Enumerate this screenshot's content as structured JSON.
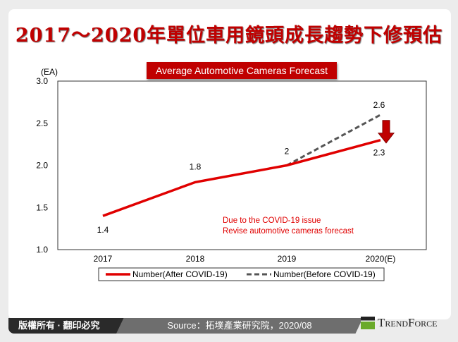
{
  "header": {
    "title": "2017～2020年單位車用鏡頭成長趨勢下修預估"
  },
  "footer": {
    "copyright": "版權所有 · 翻印必究",
    "source": "Source：拓墣產業研究院，2020/08",
    "logo": "TrendForce"
  },
  "chart_data": {
    "type": "line",
    "title": "Average Automotive Cameras Forecast",
    "ylabel": "(EA)",
    "ylim": [
      1.0,
      3.0
    ],
    "yticks": [
      "1.0",
      "1.5",
      "2.0",
      "2.5",
      "3.0"
    ],
    "categories": [
      "2017",
      "2018",
      "2019",
      "2020(E)"
    ],
    "series": [
      {
        "name": "Number(After COVID-19)",
        "values": [
          1.4,
          1.8,
          2,
          2.3
        ],
        "labels": [
          "1.4",
          "1.8",
          "2",
          "2.3"
        ],
        "color": "#e00000",
        "style": "solid"
      },
      {
        "name": "Number(Before COVID-19)",
        "values": [
          null,
          null,
          2,
          2.6
        ],
        "labels": [
          "",
          "",
          "",
          "2.6"
        ],
        "color": "#555555",
        "style": "dashed"
      }
    ],
    "annotation": [
      "Due to the COVID-19 issue",
      "Revise automotive cameras forecast"
    ],
    "annotation_color": "#e00000"
  }
}
